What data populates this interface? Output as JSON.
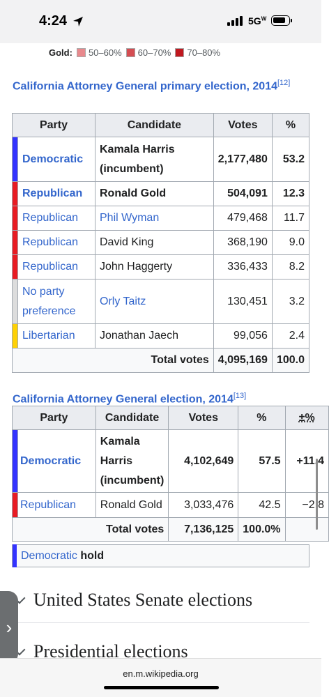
{
  "status": {
    "time": "4:24",
    "network": "5G",
    "network_sup": "W"
  },
  "legend": {
    "label": "Gold:",
    "items": [
      {
        "text": "50–60%",
        "color": "#e8898d"
      },
      {
        "text": "60–70%",
        "color": "#d44d52"
      },
      {
        "text": "70–80%",
        "color": "#c0181f"
      }
    ]
  },
  "primary": {
    "caption": "California Attorney General primary election, 2014",
    "ref": "[12]",
    "headers": {
      "party": "Party",
      "candidate": "Candidate",
      "votes": "Votes",
      "pct": "%"
    },
    "rows": [
      {
        "party": "Democratic",
        "candidate": "Kamala Harris (incumbent)",
        "votes": "2,177,480",
        "pct": "53.2",
        "color": "#3333ff",
        "bold": true
      },
      {
        "party": "Republican",
        "candidate": "Ronald Gold",
        "votes": "504,091",
        "pct": "12.3",
        "color": "#e81b23",
        "bold": true
      },
      {
        "party": "Republican",
        "candidate": "Phil Wyman",
        "votes": "479,468",
        "pct": "11.7",
        "color": "#e81b23",
        "bold": false
      },
      {
        "party": "Republican",
        "candidate": "David King",
        "votes": "368,190",
        "pct": "9.0",
        "color": "#e81b23",
        "bold": false
      },
      {
        "party": "Republican",
        "candidate": "John Haggerty",
        "votes": "336,433",
        "pct": "8.2",
        "color": "#e81b23",
        "bold": false
      },
      {
        "party": "No party preference",
        "candidate": "Orly Taitz",
        "votes": "130,451",
        "pct": "3.2",
        "color": "#dddddd",
        "bold": false
      },
      {
        "party": "Libertarian",
        "candidate": "Jonathan Jaech",
        "votes": "99,056",
        "pct": "2.4",
        "color": "#fed105",
        "bold": false
      }
    ],
    "total_label": "Total votes",
    "total_votes": "4,095,169",
    "total_pct": "100.0"
  },
  "general": {
    "caption": "California Attorney General election, 2014",
    "ref": "[13]",
    "headers": {
      "party": "Party",
      "candidate": "Candidate",
      "votes": "Votes",
      "pct": "%",
      "change": "±%"
    },
    "rows": [
      {
        "party": "Democratic",
        "candidate": "Kamala Harris (incumbent)",
        "votes": "4,102,649",
        "pct": "57.5",
        "change": "+11.4",
        "color": "#3333ff",
        "bold": true
      },
      {
        "party": "Republican",
        "candidate": "Ronald Gold",
        "votes": "3,033,476",
        "pct": "42.5",
        "change": "−2.8",
        "color": "#e81b23",
        "bold": false
      }
    ],
    "total_label": "Total votes",
    "total_votes": "7,136,125",
    "total_pct": "100.0%",
    "hold_party": "Democratic",
    "hold_word": "hold"
  },
  "sections": [
    {
      "title": "United States Senate elections"
    },
    {
      "title": "Presidential elections"
    }
  ],
  "browser": {
    "url": "en.m.wikipedia.org"
  }
}
